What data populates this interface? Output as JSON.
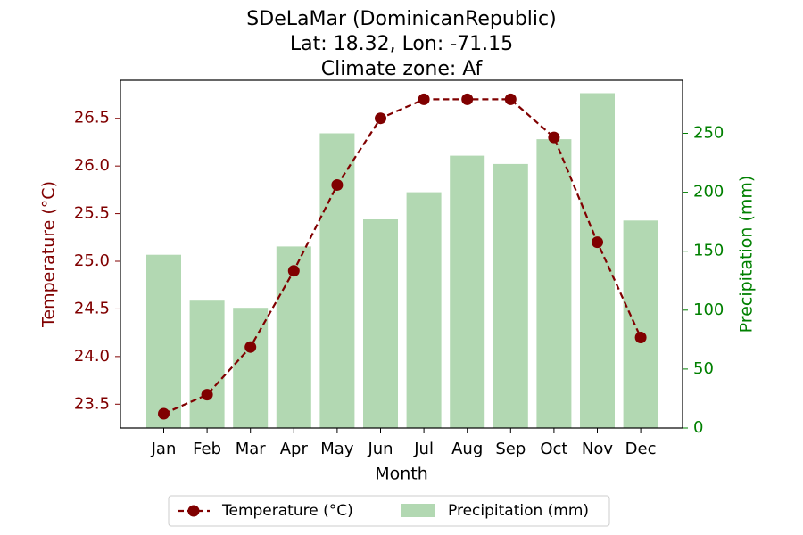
{
  "chart_data": {
    "type": "bar+line",
    "title_lines": [
      "SDeLaMar (DominicanRepublic)",
      "Lat: 18.32, Lon: -71.15",
      "Climate zone: Af"
    ],
    "xlabel": "Month",
    "ylabel_left": "Temperature (°C)",
    "ylabel_right": "Precipitation (mm)",
    "categories": [
      "Jan",
      "Feb",
      "Mar",
      "Apr",
      "May",
      "Jun",
      "Jul",
      "Aug",
      "Sep",
      "Oct",
      "Nov",
      "Dec"
    ],
    "temperature": {
      "name": "Temperature (°C)",
      "values": [
        23.4,
        23.6,
        24.1,
        24.9,
        25.8,
        26.5,
        26.7,
        26.7,
        26.7,
        26.3,
        25.2,
        24.2
      ],
      "color": "#800000"
    },
    "precipitation": {
      "name": "Precipitation (mm)",
      "values": [
        147,
        108,
        102,
        154,
        250,
        177,
        200,
        231,
        224,
        245,
        284,
        176
      ],
      "color": "#b2d8b2"
    },
    "ylim_left": [
      23.25,
      26.9
    ],
    "ylim_right": [
      0,
      295
    ],
    "yticks_left": [
      "23.5",
      "24.0",
      "24.5",
      "25.0",
      "25.5",
      "26.0",
      "26.5"
    ],
    "yticks_right": [
      "0",
      "50",
      "100",
      "150",
      "200",
      "250"
    ],
    "left_axis_color": "#800000",
    "right_axis_color": "#008000",
    "legend_position": "bottom-center"
  }
}
